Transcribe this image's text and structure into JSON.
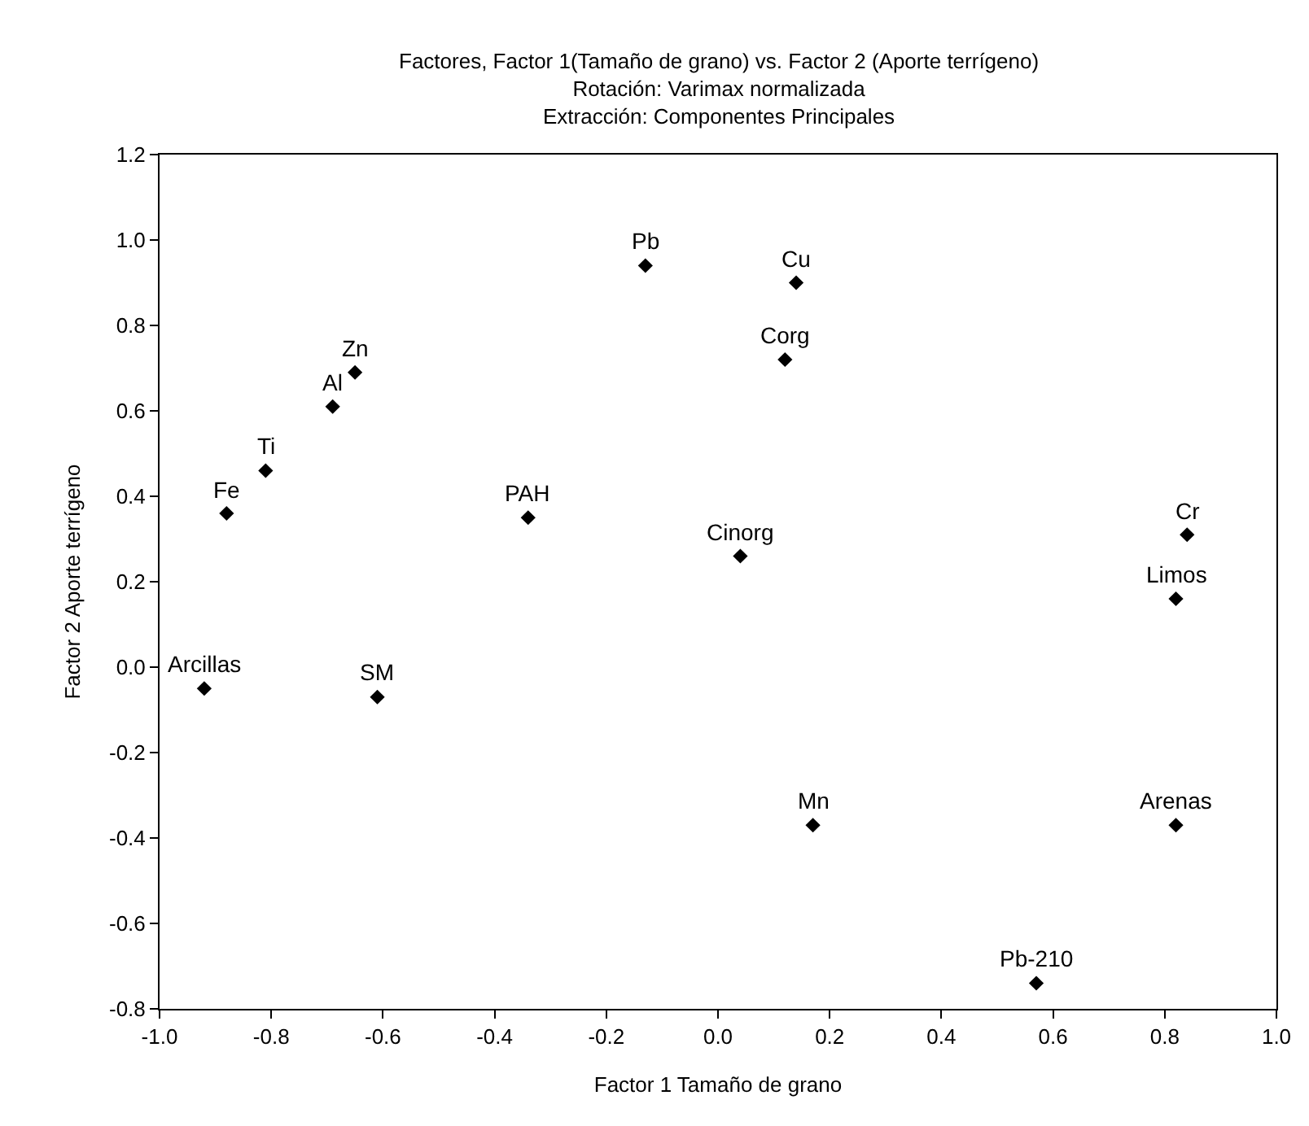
{
  "chart_data": {
    "type": "scatter",
    "title": "Factores, Factor 1(Tamaño de grano) vs. Factor 2 (Aporte terrígeno)",
    "subtitle": "Rotación: Varimax normalizada\nExtracción: Componentes Principales",
    "xlabel": "Factor 1 Tamaño de grano",
    "ylabel": "Factor 2 Aporte terrígeno",
    "x": [
      -0.92,
      -0.61,
      -0.88,
      -0.81,
      -0.69,
      -0.65,
      -0.34,
      -0.13,
      0.14,
      0.12,
      0.04,
      0.17,
      0.57,
      0.84,
      0.82,
      0.82
    ],
    "series": [
      {
        "color": "#000000",
        "values": [
          -0.05,
          -0.07,
          0.36,
          0.46,
          0.61,
          0.69,
          0.35,
          0.94,
          0.9,
          0.72,
          0.26,
          -0.37,
          -0.74,
          0.31,
          0.16,
          -0.37
        ]
      }
    ],
    "annotations": [
      {
        "text": "Arcillas",
        "x": -0.92,
        "y": -0.05
      },
      {
        "text": "SM",
        "x": -0.61,
        "y": -0.07
      },
      {
        "text": "Fe",
        "x": -0.88,
        "y": 0.36
      },
      {
        "text": "Ti",
        "x": -0.81,
        "y": 0.46
      },
      {
        "text": "Al",
        "x": -0.69,
        "y": 0.61
      },
      {
        "text": "Zn",
        "x": -0.65,
        "y": 0.69
      },
      {
        "text": "PAH",
        "x": -0.34,
        "y": 0.35
      },
      {
        "text": "Pb",
        "x": -0.13,
        "y": 0.94
      },
      {
        "text": "Cu",
        "x": 0.14,
        "y": 0.9
      },
      {
        "text": "Corg",
        "x": 0.12,
        "y": 0.72
      },
      {
        "text": "Cinorg",
        "x": 0.04,
        "y": 0.26
      },
      {
        "text": "Mn",
        "x": 0.17,
        "y": -0.37
      },
      {
        "text": "Pb-210",
        "x": 0.57,
        "y": -0.74
      },
      {
        "text": "Cr",
        "x": 0.84,
        "y": 0.31
      },
      {
        "text": "Limos",
        "x": 0.82,
        "y": 0.16
      },
      {
        "text": "Arenas",
        "x": 0.82,
        "y": -0.37
      }
    ],
    "xlim": [
      -1.0,
      1.0
    ],
    "ylim": [
      -0.8,
      1.2
    ],
    "xticks": [
      {
        "value": -1.0,
        "label": "-1.0"
      },
      {
        "value": -0.8,
        "label": "-0.8"
      },
      {
        "value": -0.6,
        "label": "-0.6"
      },
      {
        "value": -0.4,
        "label": "-0.4"
      },
      {
        "value": -0.2,
        "label": "-0.2"
      },
      {
        "value": 0,
        "label": "0.0"
      },
      {
        "value": 0.2,
        "label": "0.2"
      },
      {
        "value": 0.4,
        "label": "0.4"
      },
      {
        "value": 0.6,
        "label": "0.6"
      },
      {
        "value": 0.8,
        "label": "0.8"
      },
      {
        "value": 1.0,
        "label": "1.0"
      }
    ],
    "yticks": [
      {
        "value": -0.8,
        "label": "-0.8"
      },
      {
        "value": -0.6,
        "label": "-0.6"
      },
      {
        "value": -0.4,
        "label": "-0.4"
      },
      {
        "value": -0.2,
        "label": "-0.2"
      },
      {
        "value": 0,
        "label": "0.0"
      },
      {
        "value": 0.2,
        "label": "0.2"
      },
      {
        "value": 0.4,
        "label": "0.4"
      },
      {
        "value": 0.6,
        "label": "0.6"
      },
      {
        "value": 0.8,
        "label": "0.8"
      },
      {
        "value": 1.0,
        "label": "1.0"
      },
      {
        "value": 1.2,
        "label": "1.2"
      }
    ],
    "grid": false,
    "marker": "diamond"
  }
}
